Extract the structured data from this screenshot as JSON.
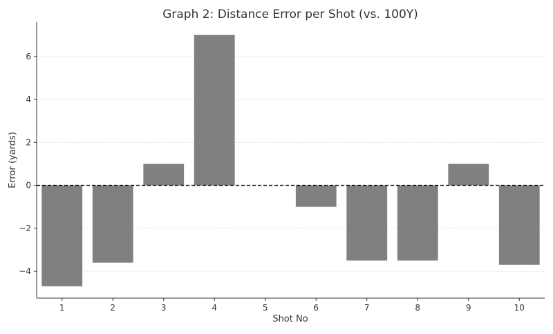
{
  "chart_data": {
    "type": "bar",
    "title": "Graph 2: Distance Error per Shot (vs. 100Y)",
    "xlabel": "Shot No",
    "ylabel": "Error (yards)",
    "categories": [
      "1",
      "2",
      "3",
      "4",
      "5",
      "6",
      "7",
      "8",
      "9",
      "10"
    ],
    "values": [
      -4.7,
      -3.6,
      1.0,
      7.0,
      0.0,
      -1.0,
      -3.5,
      -3.5,
      1.0,
      -3.7
    ],
    "ylim": [
      -5.25,
      7.6
    ],
    "yticks": [
      -4,
      -2,
      0,
      2,
      4,
      6
    ],
    "ytick_labels": [
      "−4",
      "−2",
      "0",
      "2",
      "4",
      "6"
    ],
    "grid": true,
    "reference_line": {
      "y": 0,
      "style": "dashed"
    },
    "colors": {
      "bar": "#808080",
      "axis": "#333333",
      "grid": "#d9d9d9",
      "reference": "#000000"
    }
  }
}
